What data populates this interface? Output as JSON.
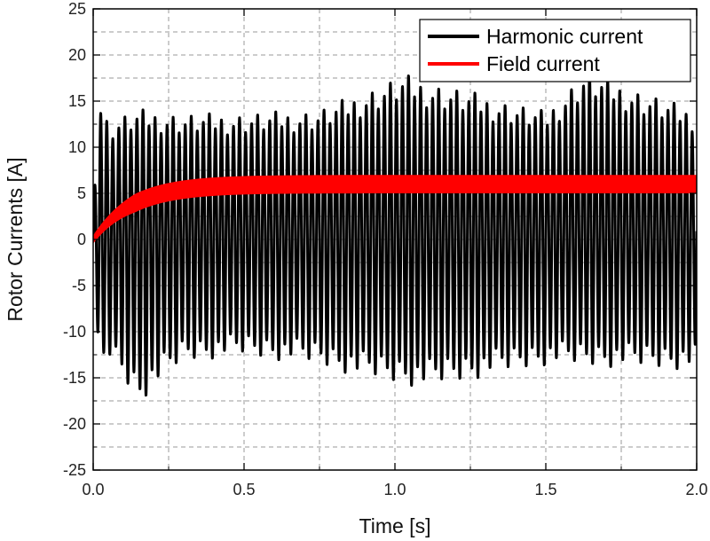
{
  "chart_data": {
    "type": "line",
    "xlabel": "Time [s]",
    "ylabel": "Rotor Currents [A]",
    "xlim": [
      0,
      2.0
    ],
    "ylim": [
      -25,
      25
    ],
    "x_ticks": [
      0.0,
      0.5,
      1.0,
      1.5,
      2.0
    ],
    "x_tick_labels": [
      "0.0",
      "0.5",
      "1.0",
      "1.5",
      "2.0"
    ],
    "y_ticks": [
      -25,
      -20,
      -15,
      -10,
      -5,
      0,
      5,
      10,
      15,
      20,
      25
    ],
    "y_tick_labels": [
      "-25",
      "-20",
      "-15",
      "-10",
      "-5",
      "0",
      "5",
      "10",
      "15",
      "20",
      "25"
    ],
    "grid": true,
    "legend_position": "top-right",
    "series": [
      {
        "name": "Harmonic current",
        "color": "#000000",
        "style": "oscillating",
        "frequency_hz": 50,
        "envelope_max": [
          [
            0.0,
            4
          ],
          [
            0.02,
            15.7
          ],
          [
            0.05,
            12.5
          ],
          [
            0.15,
            13.5
          ],
          [
            0.3,
            12.8
          ],
          [
            0.5,
            12.8
          ],
          [
            0.75,
            13.2
          ],
          [
            1.03,
            17.0
          ],
          [
            1.5,
            13.0
          ],
          [
            1.63,
            17.5
          ],
          [
            2.0,
            13.0
          ]
        ],
        "envelope_min": [
          [
            0.0,
            -4
          ],
          [
            0.02,
            -15.0
          ],
          [
            0.05,
            -13.0
          ],
          [
            0.15,
            -18.3
          ],
          [
            0.3,
            -14.0
          ],
          [
            0.5,
            -13.5
          ],
          [
            0.75,
            -14.5
          ],
          [
            0.88,
            -15.8
          ],
          [
            1.1,
            -17.0
          ],
          [
            1.5,
            -14.5
          ],
          [
            2.0,
            -15.0
          ]
        ]
      },
      {
        "name": "Field current",
        "color": "#ff0000",
        "style": "band",
        "steady_state": 6.0,
        "time_constant_s": 0.13,
        "band_halfwidth": 1.0
      }
    ]
  }
}
